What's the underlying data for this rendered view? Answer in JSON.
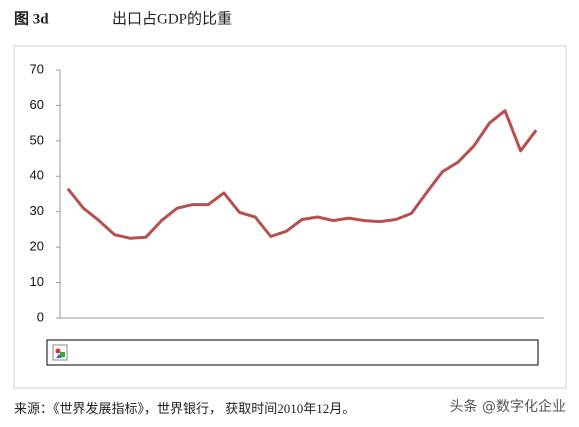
{
  "chart_data": {
    "type": "line",
    "figure_label": "图 3d",
    "title": "出口占GDP的比重",
    "source": "来源：《世界发展指标》，世界银行， 获取时间2010年12月。",
    "watermark": "头条 @数字化企业",
    "categories": [
      null,
      null,
      null,
      null,
      null,
      null,
      null,
      null,
      null,
      null,
      null,
      null,
      null,
      null,
      null,
      null,
      null,
      null,
      null,
      null,
      null,
      null,
      null,
      null,
      null,
      null,
      null,
      null,
      null,
      null,
      null
    ],
    "values": [
      36.5,
      31,
      27.5,
      23.5,
      22.5,
      22.8,
      27.5,
      31,
      32,
      32,
      35.3,
      29.8,
      28.5,
      23,
      24.5,
      27.8,
      28.5,
      27.5,
      28.2,
      27.5,
      27.2,
      27.8,
      29.5,
      35.5,
      41.3,
      44,
      48.5,
      55,
      58.5,
      47.2,
      53
    ],
    "color": "#b5504e",
    "ylim": [
      0,
      70
    ],
    "yticks": [
      0,
      10,
      20,
      30,
      40,
      50,
      60,
      70
    ],
    "grid": false
  }
}
